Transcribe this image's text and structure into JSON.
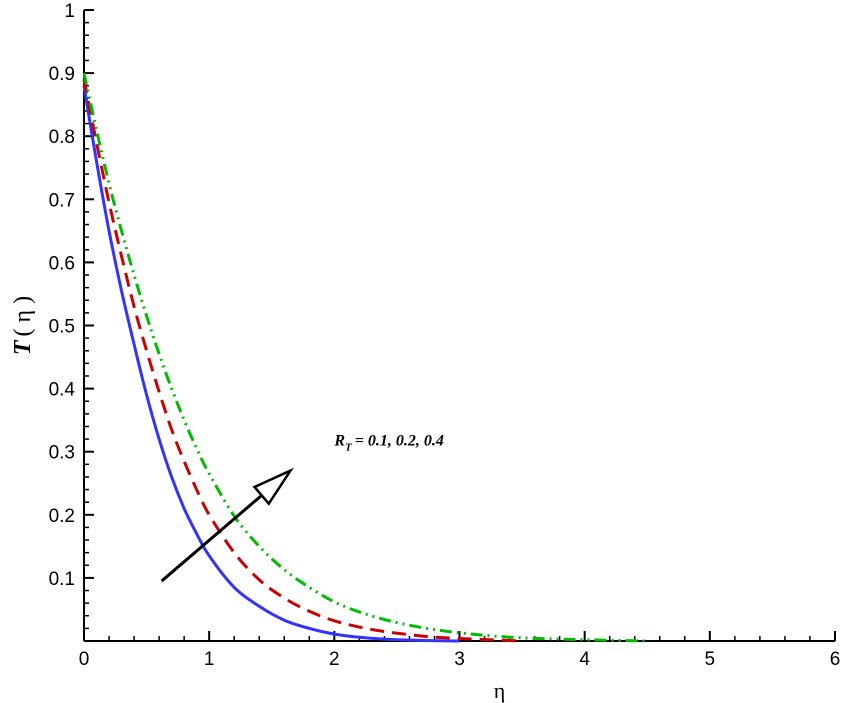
{
  "chart_data": {
    "type": "line",
    "title": "",
    "xlabel": "η",
    "ylabel_main": "T",
    "ylabel_arg": "( η )",
    "xlim": [
      0,
      6
    ],
    "ylim": [
      0,
      1
    ],
    "x_ticks": [
      0,
      1,
      2,
      3,
      4,
      5,
      6
    ],
    "x_tick_labels": [
      "0",
      "1",
      "2",
      "3",
      "4",
      "5",
      "6"
    ],
    "y_ticks": [
      0.1,
      0.2,
      0.3,
      0.4,
      0.5,
      0.6,
      0.7,
      0.8,
      0.9,
      1
    ],
    "y_tick_labels": [
      "0.1",
      "0.2",
      "0.3",
      "0.4",
      "0.5",
      "0.6",
      "0.7",
      "0.8",
      "0.9",
      "1"
    ],
    "grid": false,
    "series": [
      {
        "style": "solid",
        "color": "#3333ff",
        "x": [
          0,
          0.1,
          0.2,
          0.3,
          0.4,
          0.5,
          0.6,
          0.7,
          0.8,
          0.9,
          1.0,
          1.2,
          1.4,
          1.6,
          1.8,
          2.0,
          2.2,
          2.5,
          3.0
        ],
        "y": [
          0.88,
          0.76,
          0.65,
          0.555,
          0.47,
          0.39,
          0.32,
          0.26,
          0.21,
          0.17,
          0.135,
          0.085,
          0.055,
          0.033,
          0.02,
          0.011,
          0.006,
          0.002,
          0.0
        ]
      },
      {
        "style": "dashed",
        "color": "#cc0000",
        "x": [
          0,
          0.1,
          0.2,
          0.3,
          0.4,
          0.5,
          0.6,
          0.7,
          0.8,
          0.9,
          1.0,
          1.2,
          1.4,
          1.6,
          1.8,
          2.0,
          2.2,
          2.4,
          2.6,
          2.8,
          3.0,
          3.5
        ],
        "y": [
          0.89,
          0.79,
          0.695,
          0.61,
          0.53,
          0.46,
          0.395,
          0.335,
          0.285,
          0.24,
          0.2,
          0.14,
          0.097,
          0.068,
          0.047,
          0.032,
          0.022,
          0.015,
          0.01,
          0.006,
          0.004,
          0.0
        ]
      },
      {
        "style": "dash-dot-dot",
        "color": "#00bb00",
        "x": [
          0,
          0.1,
          0.2,
          0.3,
          0.4,
          0.5,
          0.6,
          0.7,
          0.8,
          0.9,
          1.0,
          1.2,
          1.4,
          1.6,
          1.8,
          2.0,
          2.2,
          2.4,
          2.6,
          2.8,
          3.0,
          3.2,
          3.5,
          3.8,
          4.0,
          4.5
        ],
        "y": [
          0.9,
          0.81,
          0.725,
          0.65,
          0.58,
          0.515,
          0.455,
          0.4,
          0.35,
          0.305,
          0.265,
          0.198,
          0.15,
          0.113,
          0.085,
          0.062,
          0.046,
          0.034,
          0.025,
          0.018,
          0.013,
          0.009,
          0.005,
          0.003,
          0.002,
          0.0
        ]
      }
    ],
    "annotation": {
      "label_main": "R",
      "label_sub": "T",
      "label_values": "= 0.1, 0.2, 0.4",
      "text_at": [
        2.0,
        0.31
      ],
      "arrow_from": [
        0.62,
        0.095
      ],
      "arrow_to": [
        1.65,
        0.27
      ]
    }
  }
}
